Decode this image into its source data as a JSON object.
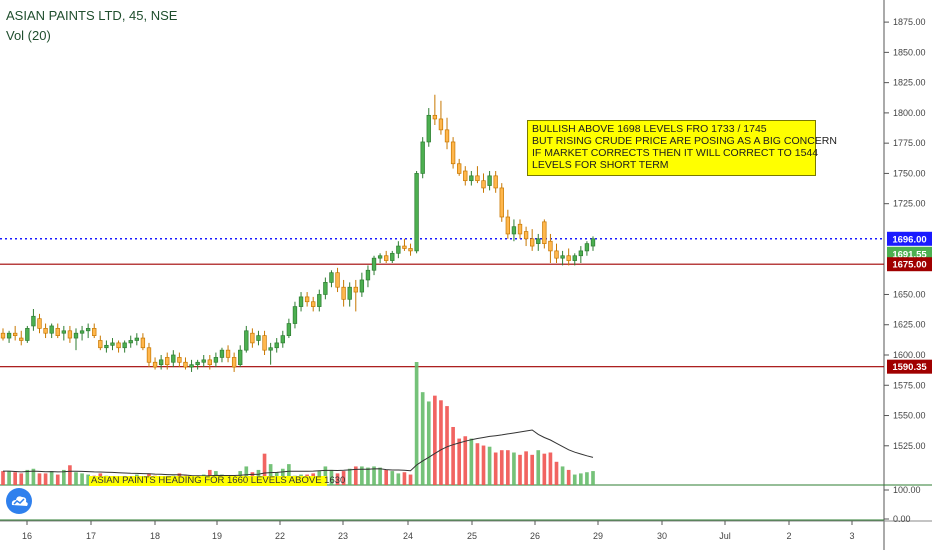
{
  "header": {
    "symbol_line": "ASIAN PAINTS LTD, 45, NSE",
    "volume_line": "Vol (20)"
  },
  "annotations": {
    "main_note": "BULLISH ABOVE 1698 LEVELS FRO 1733 / 1745\nBUT RISING CRUDE PRICE ARE POSING AS A BIG CONCERN\nIF MARKET CORRECTS THEN IT WILL CORRECT TO 1544\nLEVELS FOR SHORT TERM",
    "small_note": "ASIAN PAINTS HEADING FOR 1660 LEVELS ABOVE 1630"
  },
  "colors": {
    "up": "#4caf50",
    "down": "#ef5350",
    "hline": "#a00000",
    "dotted": "#1a1aff",
    "ma": "#333333",
    "logo": "#2f80ed"
  },
  "icons": {
    "logo": "tradingview-cloud-icon"
  },
  "chart_data": {
    "type": "candlestick",
    "price_axis": {
      "ticks": [
        "1875.00",
        "1850.00",
        "1825.00",
        "1800.00",
        "1775.00",
        "1750.00",
        "1725.00",
        "1650.00",
        "1625.00",
        "1600.00",
        "1575.00",
        "1550.00",
        "1525.00"
      ],
      "ylim": [
        1505,
        1885
      ]
    },
    "volume_axis": {
      "ticks": [
        "100.00",
        "0.00"
      ]
    },
    "x_ticks": [
      "16",
      "17",
      "18",
      "19",
      "22",
      "23",
      "24",
      "25",
      "26",
      "29",
      "30",
      "Jul",
      "2",
      "3"
    ],
    "price_labels": [
      {
        "text": "1696.00",
        "value": 1696.0,
        "color": "#1a1aff"
      },
      {
        "text": "1691.55",
        "value": 1691.55,
        "color": "#4caf50"
      },
      {
        "text": "1675.00",
        "value": 1675.0,
        "color": "#a00000"
      },
      {
        "text": "1590.35",
        "value": 1590.35,
        "color": "#a00000"
      }
    ],
    "horizontal_lines": [
      1675.0,
      1590.35
    ],
    "dotted_line": 1696.0,
    "candles": [
      [
        1618,
        1622,
        1612,
        1614
      ],
      [
        1614,
        1620,
        1610,
        1618
      ],
      [
        1618,
        1624,
        1612,
        1616
      ],
      [
        1614,
        1620,
        1608,
        1612
      ],
      [
        1612,
        1624,
        1610,
        1622
      ],
      [
        1624,
        1638,
        1620,
        1632
      ],
      [
        1630,
        1634,
        1618,
        1622
      ],
      [
        1622,
        1626,
        1614,
        1618
      ],
      [
        1618,
        1626,
        1614,
        1624
      ],
      [
        1622,
        1626,
        1614,
        1616
      ],
      [
        1618,
        1624,
        1612,
        1620
      ],
      [
        1620,
        1624,
        1610,
        1614
      ],
      [
        1614,
        1622,
        1604,
        1618
      ],
      [
        1618,
        1624,
        1612,
        1620
      ],
      [
        1620,
        1626,
        1614,
        1622
      ],
      [
        1622,
        1626,
        1614,
        1616
      ],
      [
        1612,
        1616,
        1604,
        1606
      ],
      [
        1606,
        1612,
        1602,
        1608
      ],
      [
        1608,
        1614,
        1604,
        1610
      ],
      [
        1610,
        1612,
        1602,
        1606
      ],
      [
        1606,
        1612,
        1602,
        1610
      ],
      [
        1610,
        1616,
        1606,
        1612
      ],
      [
        1612,
        1618,
        1608,
        1614
      ],
      [
        1614,
        1618,
        1604,
        1606
      ],
      [
        1606,
        1610,
        1590,
        1594
      ],
      [
        1594,
        1598,
        1588,
        1590
      ],
      [
        1592,
        1600,
        1588,
        1596
      ],
      [
        1598,
        1602,
        1588,
        1592
      ],
      [
        1594,
        1604,
        1590,
        1600
      ],
      [
        1598,
        1602,
        1590,
        1594
      ],
      [
        1594,
        1598,
        1588,
        1590
      ],
      [
        1590,
        1596,
        1586,
        1592
      ],
      [
        1592,
        1596,
        1588,
        1594
      ],
      [
        1594,
        1600,
        1590,
        1596
      ],
      [
        1596,
        1600,
        1588,
        1592
      ],
      [
        1594,
        1602,
        1590,
        1598
      ],
      [
        1598,
        1606,
        1594,
        1604
      ],
      [
        1604,
        1608,
        1594,
        1598
      ],
      [
        1598,
        1602,
        1586,
        1590
      ],
      [
        1592,
        1608,
        1590,
        1604
      ],
      [
        1604,
        1624,
        1602,
        1620
      ],
      [
        1618,
        1622,
        1606,
        1610
      ],
      [
        1612,
        1620,
        1608,
        1616
      ],
      [
        1616,
        1620,
        1600,
        1604
      ],
      [
        1604,
        1610,
        1592,
        1606
      ],
      [
        1606,
        1614,
        1602,
        1610
      ],
      [
        1610,
        1620,
        1606,
        1616
      ],
      [
        1616,
        1630,
        1614,
        1626
      ],
      [
        1626,
        1644,
        1622,
        1640
      ],
      [
        1640,
        1652,
        1636,
        1648
      ],
      [
        1648,
        1652,
        1640,
        1644
      ],
      [
        1644,
        1648,
        1636,
        1640
      ],
      [
        1640,
        1654,
        1636,
        1650
      ],
      [
        1650,
        1664,
        1646,
        1660
      ],
      [
        1660,
        1670,
        1656,
        1668
      ],
      [
        1668,
        1672,
        1652,
        1656
      ],
      [
        1656,
        1662,
        1640,
        1646
      ],
      [
        1646,
        1660,
        1640,
        1656
      ],
      [
        1656,
        1662,
        1636,
        1652
      ],
      [
        1652,
        1668,
        1648,
        1662
      ],
      [
        1662,
        1674,
        1656,
        1670
      ],
      [
        1670,
        1682,
        1666,
        1680
      ],
      [
        1680,
        1684,
        1676,
        1682
      ],
      [
        1682,
        1686,
        1676,
        1678
      ],
      [
        1678,
        1686,
        1676,
        1684
      ],
      [
        1684,
        1694,
        1680,
        1690
      ],
      [
        1690,
        1696,
        1686,
        1688
      ],
      [
        1688,
        1692,
        1682,
        1686
      ],
      [
        1686,
        1752,
        1684,
        1750
      ],
      [
        1750,
        1780,
        1746,
        1776
      ],
      [
        1776,
        1804,
        1772,
        1798
      ],
      [
        1798,
        1815,
        1790,
        1795
      ],
      [
        1795,
        1810,
        1782,
        1786
      ],
      [
        1786,
        1796,
        1770,
        1776
      ],
      [
        1776,
        1780,
        1754,
        1758
      ],
      [
        1758,
        1762,
        1748,
        1750
      ],
      [
        1752,
        1756,
        1740,
        1744
      ],
      [
        1744,
        1752,
        1740,
        1748
      ],
      [
        1748,
        1756,
        1742,
        1744
      ],
      [
        1744,
        1750,
        1734,
        1738
      ],
      [
        1740,
        1752,
        1736,
        1748
      ],
      [
        1748,
        1752,
        1734,
        1738
      ],
      [
        1738,
        1742,
        1710,
        1714
      ],
      [
        1714,
        1720,
        1696,
        1700
      ],
      [
        1700,
        1712,
        1694,
        1706
      ],
      [
        1708,
        1712,
        1696,
        1700
      ],
      [
        1702,
        1706,
        1690,
        1696
      ],
      [
        1696,
        1704,
        1686,
        1690
      ],
      [
        1692,
        1700,
        1686,
        1696
      ],
      [
        1710,
        1712,
        1688,
        1692
      ],
      [
        1694,
        1700,
        1676,
        1686
      ],
      [
        1686,
        1692,
        1676,
        1680
      ],
      [
        1680,
        1686,
        1674,
        1682
      ],
      [
        1682,
        1688,
        1674,
        1678
      ],
      [
        1678,
        1684,
        1674,
        1682
      ],
      [
        1682,
        1690,
        1676,
        1686
      ],
      [
        1686,
        1694,
        1682,
        1692
      ],
      [
        1690,
        1698,
        1686,
        1696
      ]
    ],
    "volume": [
      12,
      12,
      11,
      10,
      13,
      14,
      10,
      10,
      12,
      9,
      13,
      17,
      11,
      10,
      9,
      8,
      10,
      8,
      7,
      6,
      7,
      7,
      9,
      7,
      10,
      8,
      6,
      6,
      8,
      10,
      8,
      7,
      7,
      9,
      13,
      12,
      9,
      7,
      7,
      12,
      16,
      11,
      13,
      27,
      18,
      11,
      14,
      18,
      8,
      9,
      9,
      10,
      12,
      16,
      13,
      10,
      12,
      14,
      16,
      16,
      15,
      16,
      15,
      13,
      12,
      10,
      11,
      9,
      106,
      80,
      72,
      77,
      73,
      68,
      50,
      40,
      42,
      40,
      36,
      34,
      33,
      28,
      30,
      30,
      28,
      26,
      29,
      26,
      30,
      27,
      28,
      20,
      16,
      13,
      9,
      10,
      11,
      12
    ],
    "volume_ma_note": "20-period moving average of volume"
  }
}
